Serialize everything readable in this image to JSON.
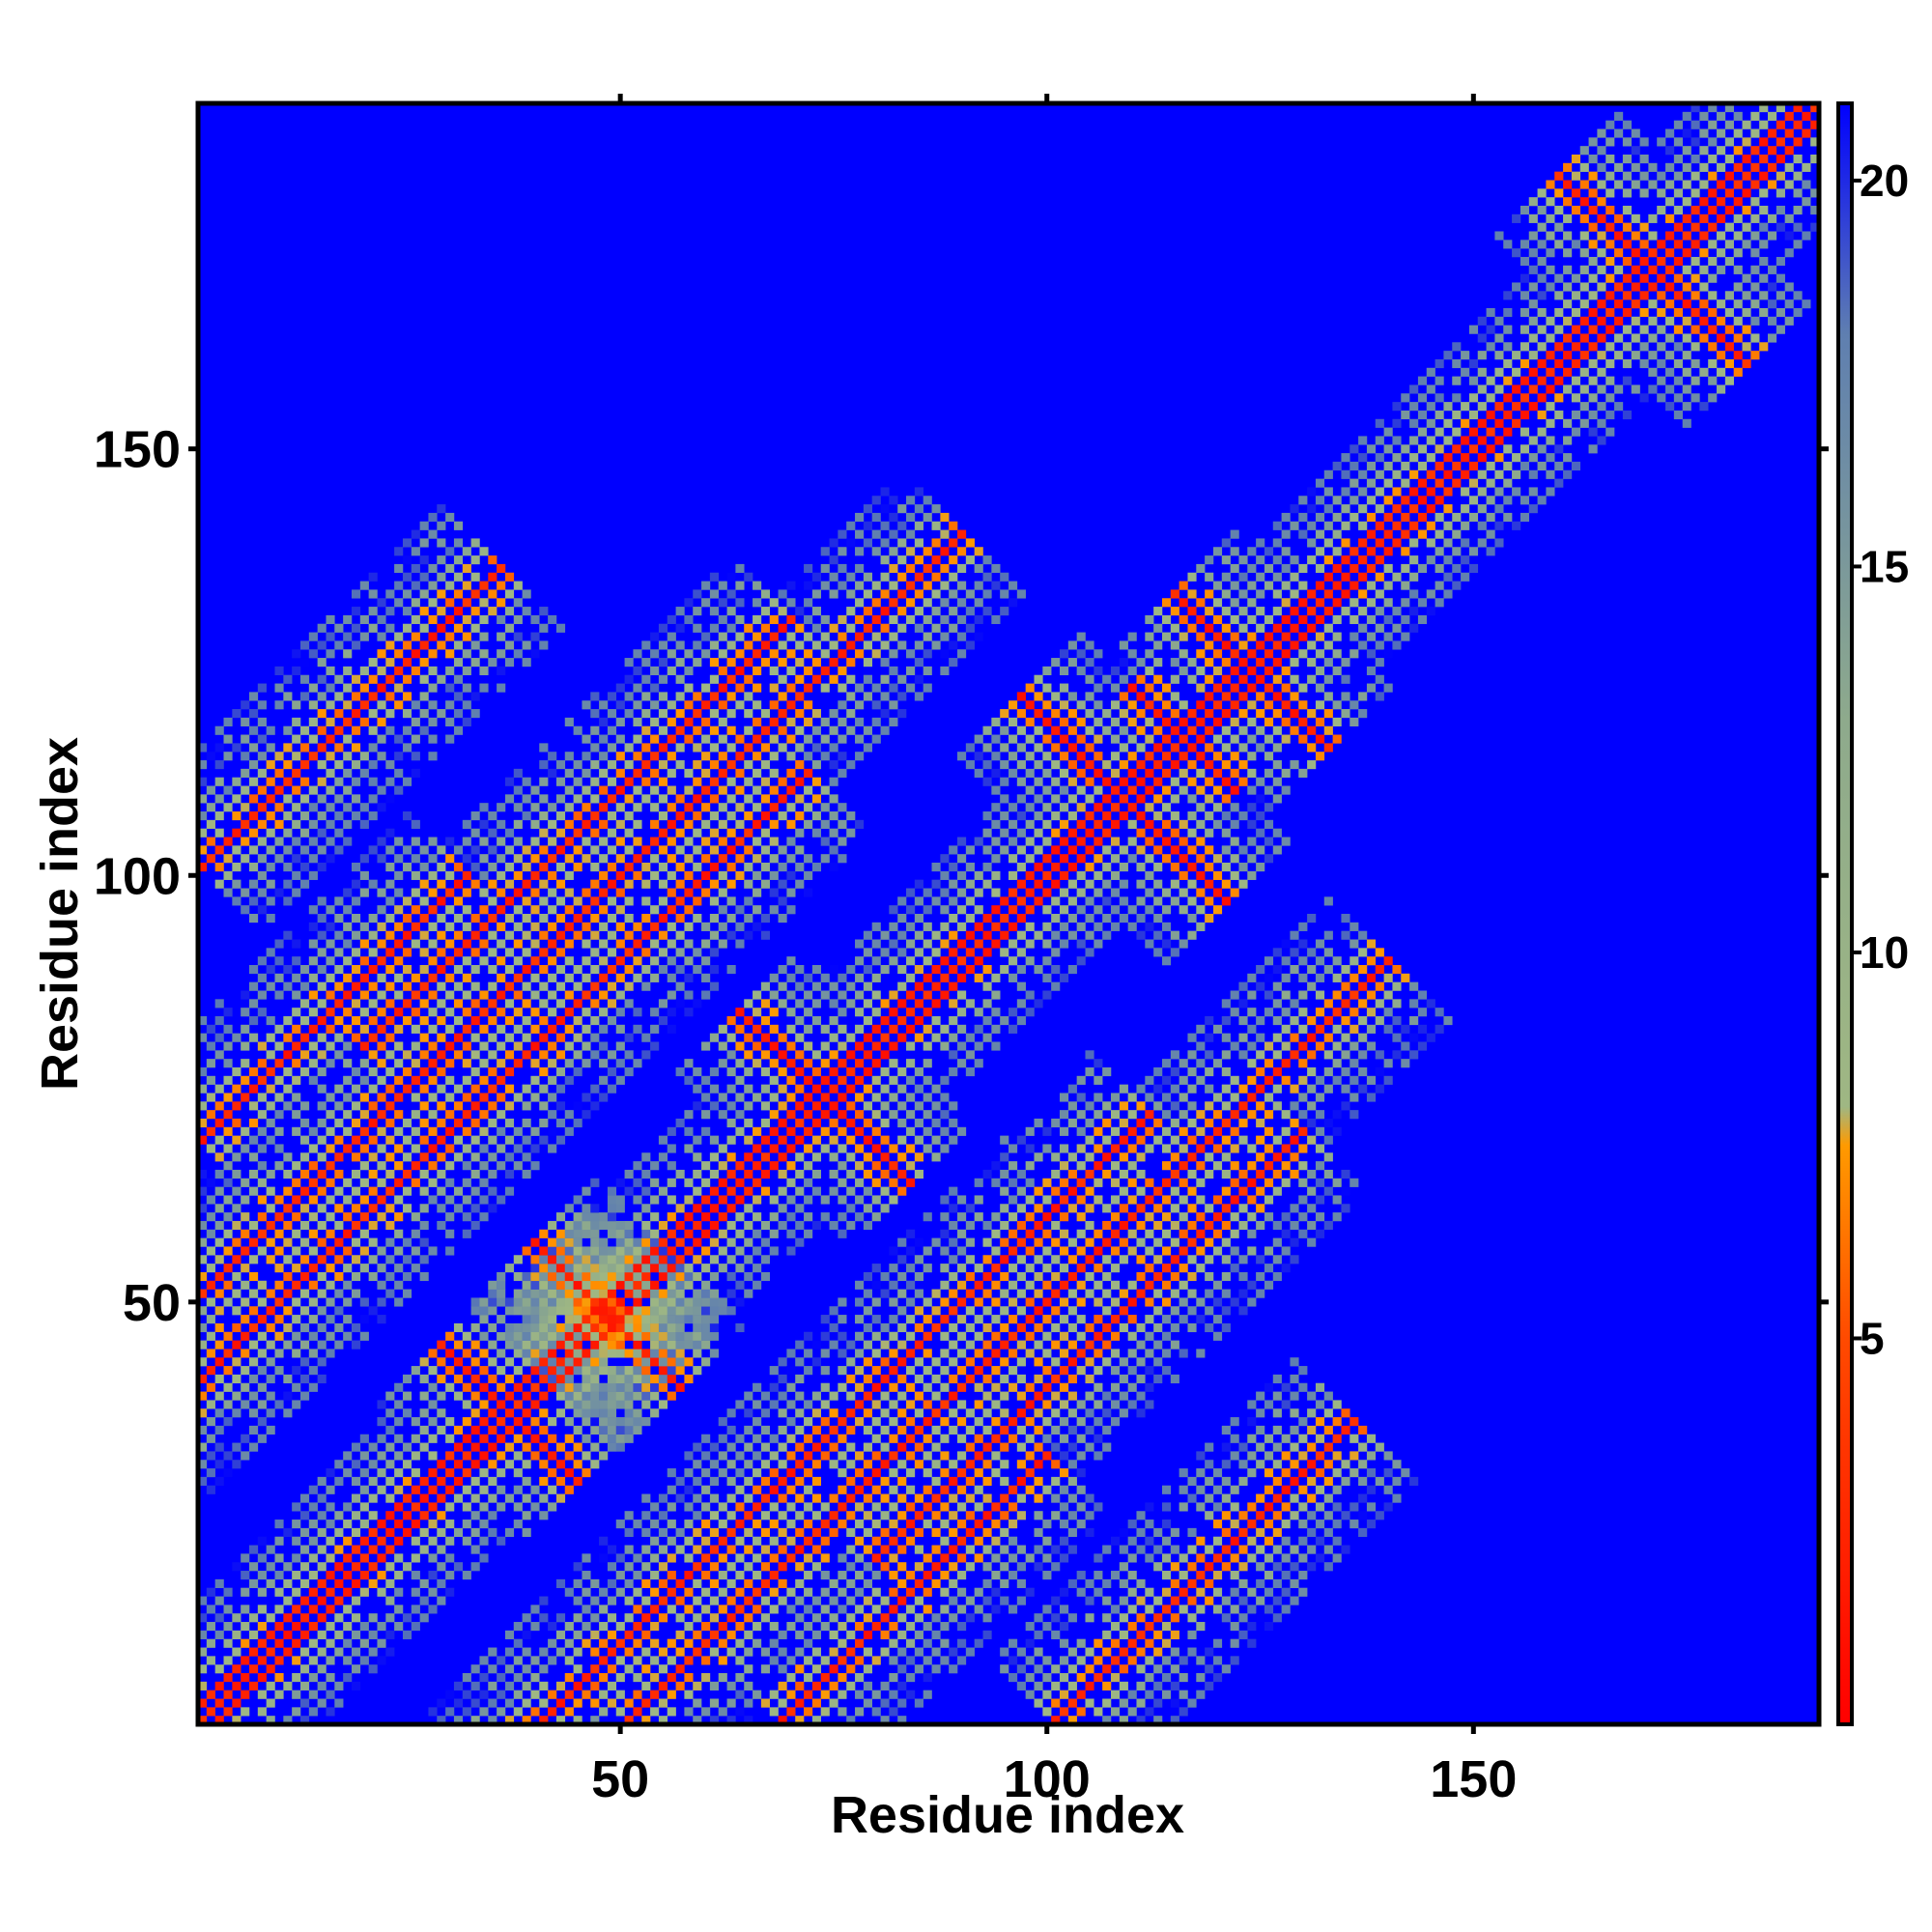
{
  "chart_data": {
    "type": "heatmap",
    "title": "",
    "xlabel": "Residue index",
    "ylabel": "Residue index",
    "xlim": [
      1,
      190
    ],
    "ylim": [
      1,
      190
    ],
    "n_residues": 190,
    "x_ticks": [
      50,
      100,
      150
    ],
    "x_tick_labels": [
      "50",
      "100",
      "150"
    ],
    "y_ticks": [
      50,
      100,
      150
    ],
    "y_tick_labels": [
      "50",
      "100",
      "150"
    ],
    "colorbar": {
      "range": [
        0,
        21
      ],
      "ticks": [
        5,
        10,
        15,
        20
      ],
      "tick_labels": [
        "5",
        "10",
        "15",
        "20"
      ],
      "scale": [
        {
          "value": 0,
          "color": "#ff0000"
        },
        {
          "value": 5,
          "color": "#ff4a00"
        },
        {
          "value": 7.5,
          "color": "#ff9a00"
        },
        {
          "value": 8,
          "color": "#9fb783"
        },
        {
          "value": 13,
          "color": "#8eaa8c"
        },
        {
          "value": 18,
          "color": "#5f7fb0"
        },
        {
          "value": 21,
          "color": "#0000ff"
        }
      ]
    },
    "background_color": "#0000ff",
    "contact_bands": [
      {
        "kind": "diagonal",
        "from": 1,
        "to": 190,
        "width": 3
      },
      {
        "kind": "antidiagonal",
        "sum": 74,
        "from": 29,
        "to": 45
      },
      {
        "kind": "antidiagonal",
        "sum": 97,
        "from": 40,
        "to": 57
      },
      {
        "kind": "antidiagonal",
        "sum": 148,
        "from": 64,
        "to": 84
      },
      {
        "kind": "antidiagonal",
        "sum": 232,
        "from": 110,
        "to": 122
      },
      {
        "kind": "antidiagonal",
        "sum": 248,
        "from": 115,
        "to": 133
      },
      {
        "kind": "antidiagonal",
        "sum": 342,
        "from": 160,
        "to": 182
      },
      {
        "kind": "antidiagonal",
        "sum": 218,
        "from": 97,
        "to": 121
      },
      {
        "kind": "parallel",
        "offset": -40,
        "from": 30,
        "to": 112
      },
      {
        "kind": "parallel",
        "offset": -50,
        "from": 51,
        "to": 140
      },
      {
        "kind": "parallel",
        "offset": 68,
        "from": 1,
        "to": 32
      },
      {
        "kind": "parallel",
        "offset": 100,
        "from": 1,
        "to": 36
      },
      {
        "kind": "parallel",
        "offset": 60,
        "from": 20,
        "to": 70
      }
    ]
  }
}
